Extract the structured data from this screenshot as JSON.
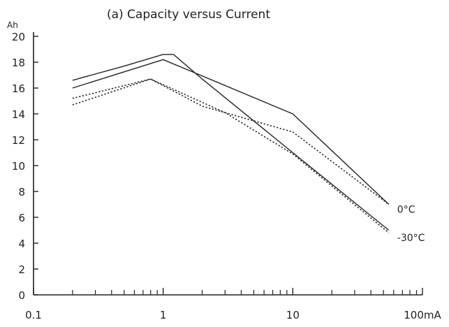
{
  "chart_data": {
    "type": "line",
    "title": "(a) Capacity versus Current",
    "y_unit": "Ah",
    "x_scale": "log",
    "xlim": [
      0.1,
      100
    ],
    "ylim": [
      0,
      20
    ],
    "x_ticks": [
      0.1,
      1,
      10,
      100
    ],
    "x_tick_labels": [
      "0.1",
      "1",
      "10",
      "100mA"
    ],
    "y_ticks": [
      0,
      2,
      4,
      6,
      8,
      10,
      12,
      14,
      16,
      18,
      20
    ],
    "y_tick_labels": [
      "0",
      "2",
      "4",
      "6",
      "8",
      "10",
      "12",
      "14",
      "16",
      "18",
      "20"
    ],
    "grid": false,
    "series": [
      {
        "name": "0°C",
        "line_style": "solid",
        "points": [
          [
            0.2,
            16.6
          ],
          [
            0.5,
            17.7
          ],
          [
            1.0,
            18.6
          ],
          [
            1.2,
            18.6
          ],
          [
            2.0,
            16.7
          ],
          [
            10,
            11.0
          ],
          [
            55,
            5.0
          ]
        ]
      },
      {
        "line_style": "solid",
        "points": [
          [
            0.2,
            16.0
          ],
          [
            1.0,
            18.2
          ],
          [
            10,
            14.0
          ],
          [
            55,
            7.0
          ]
        ]
      },
      {
        "name": "-30°C",
        "line_style": "dotted",
        "points": [
          [
            0.2,
            14.7
          ],
          [
            0.8,
            16.7
          ],
          [
            2.0,
            14.6
          ],
          [
            10,
            12.6
          ],
          [
            55,
            7.0
          ]
        ]
      },
      {
        "line_style": "dotted",
        "points": [
          [
            0.2,
            15.2
          ],
          [
            0.8,
            16.7
          ],
          [
            3.0,
            14.1
          ],
          [
            10,
            10.9
          ],
          [
            55,
            4.8
          ]
        ]
      }
    ],
    "annotations": [
      {
        "text": "0°C",
        "at": [
          55,
          7.0
        ]
      },
      {
        "text": "-30°C",
        "at": [
          55,
          4.8
        ]
      }
    ]
  }
}
